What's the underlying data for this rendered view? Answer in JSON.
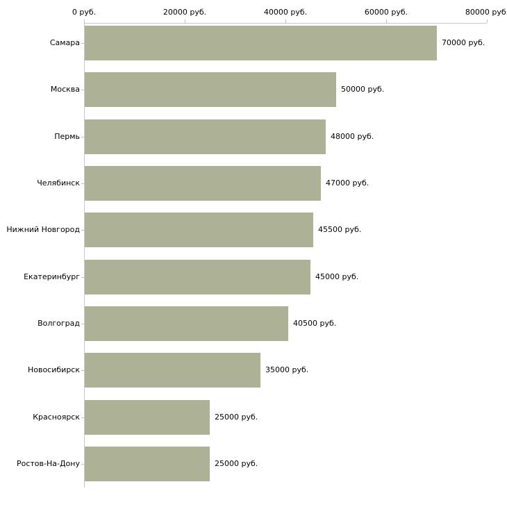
{
  "chart_data": {
    "type": "bar",
    "orientation": "horizontal",
    "title": "",
    "categories": [
      "Самара",
      "Москва",
      "Пермь",
      "Челябинск",
      "Нижний Новгород",
      "Екатеринбург",
      "Волгоград",
      "Новосибирск",
      "Красноярск",
      "Ростов-На-Дону"
    ],
    "values": [
      70000,
      50000,
      48000,
      47000,
      45500,
      45000,
      40500,
      35000,
      25000,
      25000
    ],
    "value_labels": [
      "70000 руб.",
      "50000 руб.",
      "48000 руб.",
      "47000 руб.",
      "45500 руб.",
      "45000 руб.",
      "40500 руб.",
      "35000 руб.",
      "25000 руб.",
      "25000 руб."
    ],
    "unit": "руб.",
    "x_axis": {
      "position": "top",
      "range": [
        0,
        80000
      ],
      "ticks": [
        0,
        20000,
        40000,
        60000,
        80000
      ],
      "tick_labels": [
        "0 руб.",
        "20000 руб.",
        "40000 руб.",
        "60000 руб.",
        "80000 руб."
      ]
    },
    "grid": false,
    "legend": false,
    "colors": {
      "bar": "#adb297",
      "tick": "#c5c69d",
      "axis_line": "#c9c9c9",
      "text": "#000000",
      "background": "#ffffff"
    }
  }
}
